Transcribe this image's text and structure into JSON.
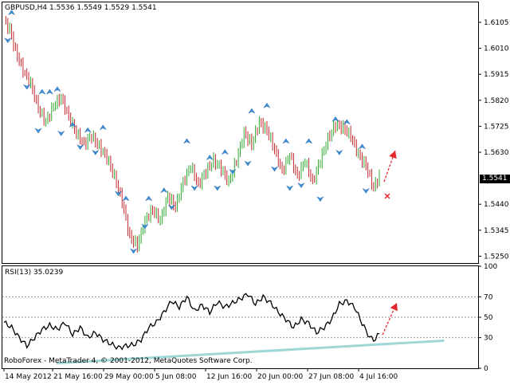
{
  "window": {
    "price_header": "GBPUSD,H4  1.5536 1.5549 1.5529 1.5541",
    "rsi_header": "RSI(13) 35.0239",
    "copyright": "RoboForex - MetaTrader 4, © 2001-2012, MetaQuotes Software Corp."
  },
  "colors": {
    "bull": "#2fa82f",
    "bear": "#c0282d",
    "fractal": "#3d8fd6",
    "rsi_line": "#000000",
    "trendline": "#9fd6d6",
    "arrow": "#e3262b",
    "price_label_bg": "#000000"
  },
  "chart_data": [
    {
      "type": "line",
      "title": "GBPUSD,H4",
      "ohlc_header": {
        "open": 1.5536,
        "high": 1.5549,
        "low": 1.5529,
        "close": 1.5541
      },
      "current_price": "1.5541",
      "ylim": [
        1.5225,
        1.6175
      ],
      "y_ticks": [
        "1.6105",
        "1.6010",
        "1.5915",
        "1.5820",
        "1.5725",
        "1.5630",
        "1.5440",
        "1.5345",
        "1.5250"
      ],
      "x_ticks": [
        "14 May 2012",
        "21 May 16:00",
        "29 May 00:00",
        "5 Jun 08:00",
        "12 Jun 16:00",
        "20 Jun 00:00",
        "27 Jun 08:00",
        "4 Jul 16:00"
      ],
      "approx_close_path": [
        [
          0,
          1.611
        ],
        [
          3,
          1.608
        ],
        [
          6,
          1.6
        ],
        [
          10,
          1.593
        ],
        [
          14,
          1.588
        ],
        [
          18,
          1.579
        ],
        [
          22,
          1.574
        ],
        [
          26,
          1.58
        ],
        [
          30,
          1.583
        ],
        [
          34,
          1.576
        ],
        [
          38,
          1.57
        ],
        [
          42,
          1.566
        ],
        [
          46,
          1.569
        ],
        [
          50,
          1.565
        ],
        [
          54,
          1.561
        ],
        [
          58,
          1.554
        ],
        [
          62,
          1.545
        ],
        [
          66,
          1.532
        ],
        [
          70,
          1.529
        ],
        [
          74,
          1.538
        ],
        [
          78,
          1.542
        ],
        [
          82,
          1.538
        ],
        [
          86,
          1.547
        ],
        [
          90,
          1.543
        ],
        [
          94,
          1.552
        ],
        [
          98,
          1.558
        ],
        [
          102,
          1.551
        ],
        [
          106,
          1.556
        ],
        [
          110,
          1.56
        ],
        [
          114,
          1.557
        ],
        [
          118,
          1.552
        ],
        [
          122,
          1.56
        ],
        [
          126,
          1.57
        ],
        [
          130,
          1.566
        ],
        [
          134,
          1.574
        ],
        [
          138,
          1.571
        ],
        [
          142,
          1.564
        ],
        [
          146,
          1.556
        ],
        [
          150,
          1.562
        ],
        [
          154,
          1.554
        ],
        [
          158,
          1.56
        ],
        [
          162,
          1.552
        ],
        [
          166,
          1.56
        ],
        [
          170,
          1.568
        ],
        [
          174,
          1.573
        ],
        [
          178,
          1.572
        ],
        [
          182,
          1.569
        ],
        [
          186,
          1.562
        ],
        [
          190,
          1.558
        ],
        [
          194,
          1.55
        ],
        [
          197,
          1.5541
        ]
      ],
      "fractals_up": [
        [
          4,
          1.615
        ],
        [
          20,
          1.586
        ],
        [
          24,
          1.586
        ],
        [
          28,
          1.587
        ],
        [
          36,
          1.574
        ],
        [
          44,
          1.572
        ],
        [
          52,
          1.573
        ],
        [
          64,
          1.547
        ],
        [
          76,
          1.547
        ],
        [
          84,
          1.55
        ],
        [
          96,
          1.568
        ],
        [
          108,
          1.562
        ],
        [
          116,
          1.564
        ],
        [
          130,
          1.579
        ],
        [
          138,
          1.581
        ],
        [
          148,
          1.568
        ],
        [
          160,
          1.568
        ],
        [
          174,
          1.576
        ],
        [
          180,
          1.575
        ],
        [
          188,
          1.566
        ]
      ],
      "fractals_down": [
        [
          2,
          1.603
        ],
        [
          12,
          1.586
        ],
        [
          18,
          1.57
        ],
        [
          30,
          1.569
        ],
        [
          40,
          1.564
        ],
        [
          48,
          1.562
        ],
        [
          60,
          1.547
        ],
        [
          68,
          1.526
        ],
        [
          74,
          1.535
        ],
        [
          88,
          1.542
        ],
        [
          100,
          1.549
        ],
        [
          112,
          1.549
        ],
        [
          120,
          1.555
        ],
        [
          128,
          1.558
        ],
        [
          142,
          1.556
        ],
        [
          150,
          1.549
        ],
        [
          156,
          1.55
        ],
        [
          166,
          1.545
        ],
        [
          176,
          1.562
        ],
        [
          190,
          1.548
        ]
      ]
    },
    {
      "type": "line",
      "title": "RSI(13)",
      "value": 35.0239,
      "ylim": [
        0,
        100
      ],
      "y_ticks": [
        "100",
        "70",
        "50",
        "30",
        "0"
      ],
      "levels": [
        70,
        50,
        30
      ],
      "approx_values": [
        [
          0,
          45
        ],
        [
          4,
          40
        ],
        [
          8,
          30
        ],
        [
          12,
          22
        ],
        [
          16,
          30
        ],
        [
          20,
          38
        ],
        [
          24,
          42
        ],
        [
          28,
          38
        ],
        [
          32,
          45
        ],
        [
          36,
          33
        ],
        [
          40,
          40
        ],
        [
          44,
          30
        ],
        [
          48,
          35
        ],
        [
          52,
          28
        ],
        [
          56,
          24
        ],
        [
          60,
          20
        ],
        [
          64,
          22
        ],
        [
          68,
          23
        ],
        [
          72,
          28
        ],
        [
          76,
          40
        ],
        [
          80,
          45
        ],
        [
          84,
          55
        ],
        [
          88,
          66
        ],
        [
          92,
          60
        ],
        [
          96,
          70
        ],
        [
          100,
          56
        ],
        [
          104,
          62
        ],
        [
          108,
          55
        ],
        [
          112,
          65
        ],
        [
          116,
          60
        ],
        [
          120,
          64
        ],
        [
          124,
          68
        ],
        [
          128,
          73
        ],
        [
          132,
          63
        ],
        [
          136,
          70
        ],
        [
          140,
          64
        ],
        [
          144,
          55
        ],
        [
          148,
          48
        ],
        [
          152,
          40
        ],
        [
          156,
          48
        ],
        [
          160,
          44
        ],
        [
          164,
          35
        ],
        [
          168,
          40
        ],
        [
          172,
          48
        ],
        [
          176,
          63
        ],
        [
          180,
          66
        ],
        [
          184,
          60
        ],
        [
          188,
          44
        ],
        [
          192,
          30
        ],
        [
          195,
          28
        ],
        [
          197,
          35
        ]
      ]
    }
  ]
}
